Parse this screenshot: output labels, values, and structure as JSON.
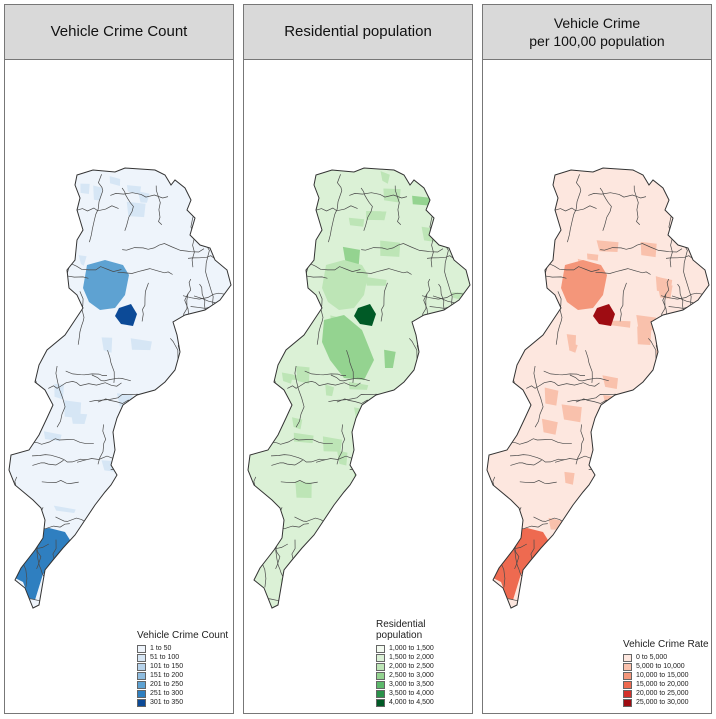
{
  "panels": [
    {
      "title_lines": [
        "Vehicle Crime Count"
      ],
      "legend_title_lines": [
        "Vehicle Crime Count"
      ],
      "legend_items": [
        "1 to 50",
        "51 to 100",
        "101 to 150",
        "151 to 200",
        "201 to 250",
        "251 to 300",
        "301 to 350"
      ],
      "colors": [
        "#eef4fb",
        "#d6e6f5",
        "#b7d3eb",
        "#8fbde0",
        "#5ea2d2",
        "#2f7fc0",
        "#0c4a97"
      ],
      "base_color_index": 0,
      "hotspots": [
        {
          "area": "north-central",
          "class_index": 4
        },
        {
          "area": "city-centre",
          "class_index": 6
        },
        {
          "area": "south-airport",
          "class_index": 5
        },
        {
          "area": "south-adjacent",
          "class_index": 2
        }
      ]
    },
    {
      "title_lines": [
        "Residential population"
      ],
      "legend_title_lines": [
        "Residential",
        "population"
      ],
      "legend_items": [
        "1,000 to 1,500",
        "1,500 to 2,000",
        "2,000 to 2,500",
        "2,500 to 3,000",
        "3,000 to 3,500",
        "3,500 to 4,000",
        "4,000 to 4,500"
      ],
      "colors": [
        "#f3faf0",
        "#dbf1d6",
        "#bde5b6",
        "#94d390",
        "#5cb86b",
        "#2a924a",
        "#005a26"
      ],
      "base_color_index": 1,
      "hotspots": [
        {
          "area": "central-dense",
          "class_index": 3
        },
        {
          "area": "city-centre",
          "class_index": 6
        },
        {
          "area": "north-central",
          "class_index": 2
        },
        {
          "area": "south-airport",
          "class_index": 1
        }
      ]
    },
    {
      "title_lines": [
        "Vehicle Crime",
        "per 100,00 population"
      ],
      "legend_title_lines": [
        "Vehicle Crime Rate"
      ],
      "legend_items": [
        "0 to 5,000",
        "5,000 to 10,000",
        "10,000 to 15,000",
        "15,000 to 20,000",
        "20,000 to 25,000",
        "25,000 to 30,000"
      ],
      "colors": [
        "#fde7df",
        "#f9c1ac",
        "#f4967a",
        "#ee6a50",
        "#d3302a",
        "#9e0c12"
      ],
      "base_color_index": 0,
      "hotspots": [
        {
          "area": "north-central",
          "class_index": 2
        },
        {
          "area": "city-centre",
          "class_index": 5
        },
        {
          "area": "south-airport",
          "class_index": 3
        },
        {
          "area": "south-adjacent",
          "class_index": 1
        }
      ]
    }
  ]
}
